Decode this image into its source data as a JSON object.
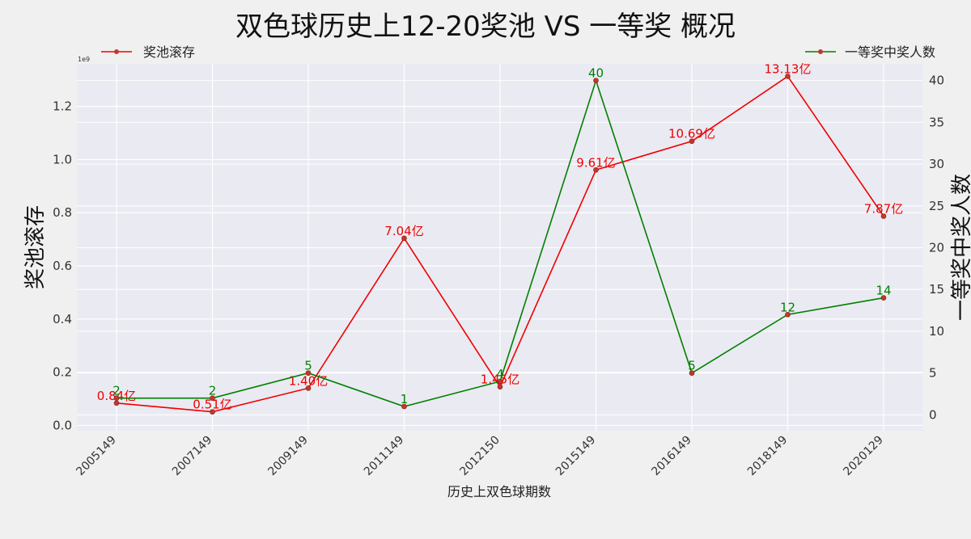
{
  "chart_data": {
    "type": "line",
    "title": "双色球历史上12-20奖池 VS 一等奖 概况",
    "xlabel": "历史上双色球期数",
    "ylabel": "奖池滚存",
    "y2label": "一等奖中奖人数",
    "y_exponent": "1e9",
    "categories": [
      "2005149",
      "2007149",
      "2009149",
      "2011149",
      "2012150",
      "2015149",
      "2016149",
      "2018149",
      "2020129"
    ],
    "ylim": [
      -0.02,
      1.36
    ],
    "yticks": [
      "0.0",
      "0.2",
      "0.4",
      "0.6",
      "0.8",
      "1.0",
      "1.2"
    ],
    "y2lim": [
      -1.9,
      42
    ],
    "y2ticks": [
      "0",
      "5",
      "10",
      "15",
      "20",
      "25",
      "30",
      "35",
      "40"
    ],
    "grid": true,
    "series": [
      {
        "name": "奖池滚存",
        "axis": "left",
        "color": "#ee0000",
        "values": [
          0.084,
          0.051,
          0.14,
          0.704,
          0.145,
          0.961,
          1.069,
          1.313,
          0.787
        ],
        "labels": [
          "0.84亿",
          "0.51亿",
          "1.40亿",
          "7.04亿",
          "1.45亿",
          "9.61亿",
          "10.69亿",
          "13.13亿",
          "7.87亿"
        ],
        "legend_position": "top-left"
      },
      {
        "name": "一等奖中奖人数",
        "axis": "right",
        "color": "#008000",
        "values": [
          2,
          2,
          5,
          1,
          4,
          40,
          5,
          12,
          14
        ],
        "labels": [
          "2",
          "2",
          "5",
          "1",
          "4",
          "40",
          "5",
          "12",
          "14"
        ],
        "legend_position": "top-right"
      }
    ]
  }
}
